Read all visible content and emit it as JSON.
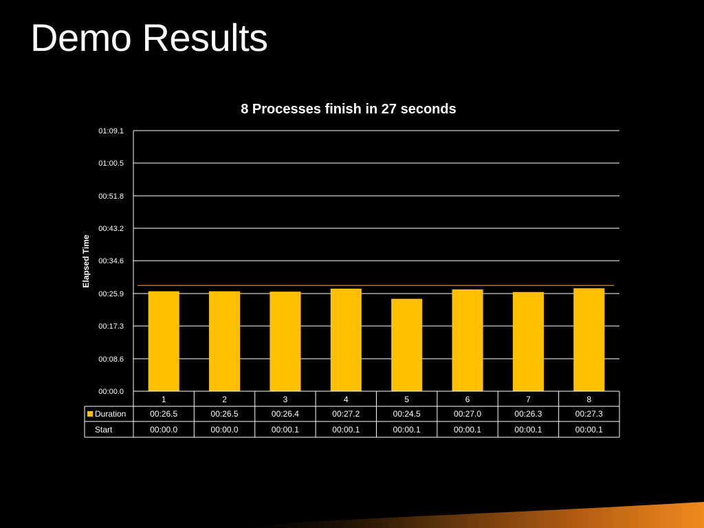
{
  "slide": {
    "title": "Demo Results"
  },
  "colors": {
    "background": "#000000",
    "bar": "#FFC000",
    "line": "#C0701E",
    "grid": "#FFFFFF",
    "text": "#FFFFFF",
    "accent": "#F08A1E"
  },
  "chart_data": {
    "type": "bar",
    "title": "8 Processes finish in 27 seconds",
    "ylabel": "Elapsed Time",
    "xlabel": "",
    "y_unit": "seconds",
    "ylim": [
      0,
      69.1
    ],
    "y_ticks": [
      0,
      8.6,
      17.3,
      25.9,
      34.6,
      43.2,
      51.8,
      60.5,
      69.1
    ],
    "y_tick_labels": [
      "00:00.0",
      "00:08.6",
      "00:17.3",
      "00:25.9",
      "00:34.6",
      "00:43.2",
      "00:51.8",
      "01:00.5",
      "01:09.1"
    ],
    "categories": [
      "1",
      "2",
      "3",
      "4",
      "5",
      "6",
      "7",
      "8"
    ],
    "series": [
      {
        "name": "Duration",
        "values": [
          26.5,
          26.5,
          26.4,
          27.2,
          24.5,
          27.0,
          26.3,
          27.3
        ],
        "labels": [
          "00:26.5",
          "00:26.5",
          "00:26.4",
          "00:27.2",
          "00:24.5",
          "00:27.0",
          "00:26.3",
          "00:27.3"
        ]
      },
      {
        "name": "Start",
        "values": [
          0.0,
          0.0,
          0.1,
          0.1,
          0.1,
          0.1,
          0.1,
          0.1
        ],
        "labels": [
          "00:00.0",
          "00:00.0",
          "00:00.1",
          "00:00.1",
          "00:00.1",
          "00:00.1",
          "00:00.1",
          "00:00.1"
        ]
      }
    ],
    "reference_line": {
      "value": 27.3
    },
    "grid": true,
    "legend": "data-table"
  }
}
